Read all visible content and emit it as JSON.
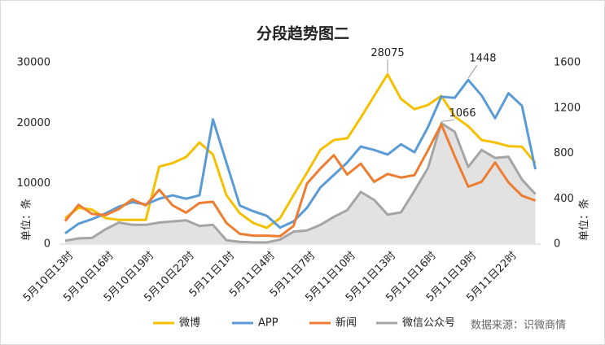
{
  "chart_data": {
    "type": "line",
    "title": "分段趋势图二",
    "y_label": "单位：条",
    "y2_label": "单位：条",
    "source": "数据来源：识微商情",
    "categories": [
      "5月10日13时",
      null,
      null,
      "5月10日16时",
      null,
      null,
      "5月10日19时",
      null,
      null,
      "5月10日22时",
      null,
      null,
      "5月11日1时",
      null,
      null,
      "5月11日4时",
      null,
      null,
      "5月11日7时",
      null,
      null,
      "5月11日10时",
      null,
      null,
      "5月11日13时",
      null,
      null,
      "5月11日16时",
      null,
      null,
      "5月11日19时",
      null,
      null,
      "5月11日22时",
      null,
      null
    ],
    "series": [
      {
        "name": "微博",
        "color": "#f5c000",
        "values": [
          4300,
          6000,
          5700,
          4300,
          4000,
          4000,
          4000,
          12800,
          13400,
          14400,
          16800,
          14800,
          8100,
          5100,
          3500,
          2700,
          4300,
          8100,
          11800,
          15600,
          17200,
          17500,
          20900,
          24500,
          28075,
          24000,
          22300,
          23000,
          24500,
          21100,
          19500,
          17200,
          16800,
          16200,
          16100,
          13400
        ]
      },
      {
        "name": "APP",
        "color": "#5b9bd5",
        "axis": "y2",
        "values": [
          95,
          180,
          220,
          270,
          330,
          370,
          350,
          400,
          430,
          400,
          430,
          1100,
          720,
          340,
          290,
          250,
          145,
          200,
          320,
          500,
          610,
          720,
          860,
          830,
          790,
          880,
          810,
          1030,
          1300,
          1290,
          1448,
          1310,
          1110,
          1330,
          1220,
          660
        ]
      },
      {
        "name": "新闻",
        "color": "#ed7d31",
        "values": [
          3800,
          6500,
          5000,
          4800,
          5800,
          7400,
          6400,
          9000,
          6400,
          5200,
          6800,
          7000,
          3500,
          1700,
          1400,
          1400,
          1300,
          3000,
          10000,
          12500,
          14700,
          11500,
          13300,
          10300,
          11600,
          11000,
          11400,
          15500,
          19800,
          14500,
          9500,
          10300,
          13500,
          10200,
          8000,
          7200
        ]
      },
      {
        "name": "微信公众号",
        "color": "#a5a5a5",
        "area_color": "#e2e2e2",
        "axis": "y2",
        "values": [
          30,
          50,
          55,
          130,
          190,
          170,
          170,
          190,
          200,
          210,
          160,
          170,
          35,
          20,
          15,
          15,
          40,
          110,
          120,
          170,
          240,
          300,
          460,
          390,
          260,
          280,
          470,
          670,
          1066,
          990,
          680,
          830,
          760,
          770,
          570,
          440
        ]
      }
    ],
    "ylim": [
      0,
      30000
    ],
    "yticks": [
      0,
      10000,
      20000,
      30000
    ],
    "y2lim": [
      0,
      1600
    ],
    "y2ticks": [
      0,
      400,
      800,
      1200,
      1600
    ],
    "grid": false
  }
}
